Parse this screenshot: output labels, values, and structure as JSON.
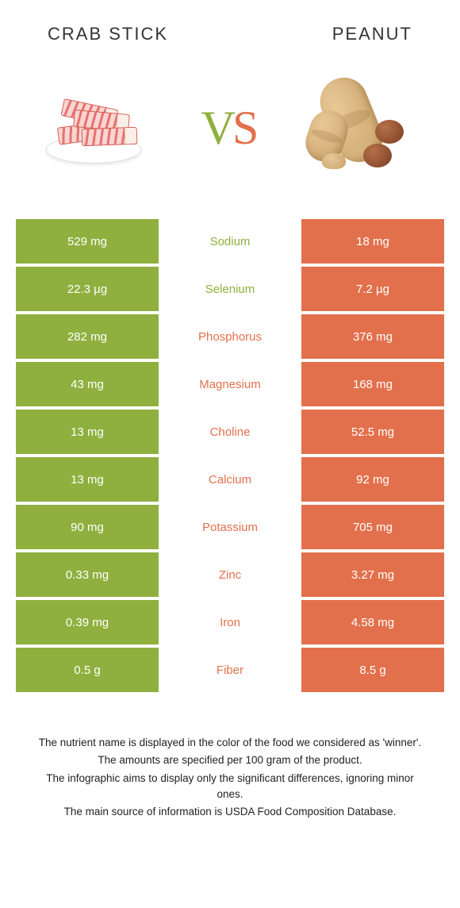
{
  "header": {
    "left_title": "Crab stick",
    "right_title": "Peanut",
    "vs_v": "V",
    "vs_s": "S"
  },
  "colors": {
    "left_bg": "#8fb03e",
    "right_bg": "#e2704c",
    "left_text": "#8fb03e",
    "right_text": "#e2704c",
    "vs_left": "#8fb03e",
    "vs_right": "#e2704c"
  },
  "rows": [
    {
      "left": "529 mg",
      "label": "Sodium",
      "right": "18 mg",
      "winner": "left"
    },
    {
      "left": "22.3 µg",
      "label": "Selenium",
      "right": "7.2 µg",
      "winner": "left"
    },
    {
      "left": "282 mg",
      "label": "Phosphorus",
      "right": "376 mg",
      "winner": "right"
    },
    {
      "left": "43 mg",
      "label": "Magnesium",
      "right": "168 mg",
      "winner": "right"
    },
    {
      "left": "13 mg",
      "label": "Choline",
      "right": "52.5 mg",
      "winner": "right"
    },
    {
      "left": "13 mg",
      "label": "Calcium",
      "right": "92 mg",
      "winner": "right"
    },
    {
      "left": "90 mg",
      "label": "Potassium",
      "right": "705 mg",
      "winner": "right"
    },
    {
      "left": "0.33 mg",
      "label": "Zinc",
      "right": "3.27 mg",
      "winner": "right"
    },
    {
      "left": "0.39 mg",
      "label": "Iron",
      "right": "4.58 mg",
      "winner": "right"
    },
    {
      "left": "0.5 g",
      "label": "Fiber",
      "right": "8.5 g",
      "winner": "right"
    }
  ],
  "footer": {
    "line1": "The nutrient name is displayed in the color of the food we considered as 'winner'.",
    "line2": "The amounts are specified per 100 gram of the product.",
    "line3": "The infographic aims to display only the significant differences, ignoring minor ones.",
    "line4": "The main source of information is USDA Food Composition Database."
  }
}
